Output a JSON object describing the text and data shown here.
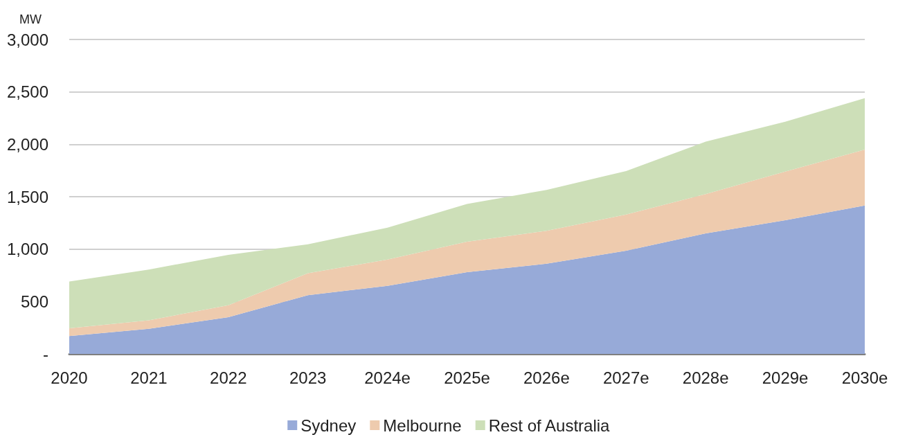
{
  "chart_data": {
    "type": "area",
    "stacked": true,
    "ylabel": "MW",
    "categories": [
      "2020",
      "2021",
      "2022",
      "2023",
      "2024e",
      "2025e",
      "2026e",
      "2027e",
      "2028e",
      "2029e",
      "2030e"
    ],
    "series": [
      {
        "name": "Sydney",
        "color": "#97aad8",
        "values": [
          170,
          240,
          350,
          560,
          650,
          780,
          860,
          985,
          1150,
          1275,
          1415
        ]
      },
      {
        "name": "Melbourne",
        "color": "#eecbae",
        "values": [
          75,
          80,
          115,
          210,
          250,
          290,
          315,
          345,
          375,
          465,
          535
        ]
      },
      {
        "name": "Rest of Australia",
        "color": "#cddfb8",
        "values": [
          445,
          485,
          480,
          275,
          305,
          360,
          390,
          415,
          500,
          475,
          490
        ]
      }
    ],
    "ylim": [
      0,
      3000
    ],
    "yticks": [
      {
        "value": 0,
        "label": "-"
      },
      {
        "value": 500,
        "label": "500"
      },
      {
        "value": 1000,
        "label": "1,000"
      },
      {
        "value": 1500,
        "label": "1,500"
      },
      {
        "value": 2000,
        "label": "2,000"
      },
      {
        "value": 2500,
        "label": "2,500"
      },
      {
        "value": 3000,
        "label": "3,000"
      }
    ],
    "grid": "y",
    "legend": "bottom"
  }
}
